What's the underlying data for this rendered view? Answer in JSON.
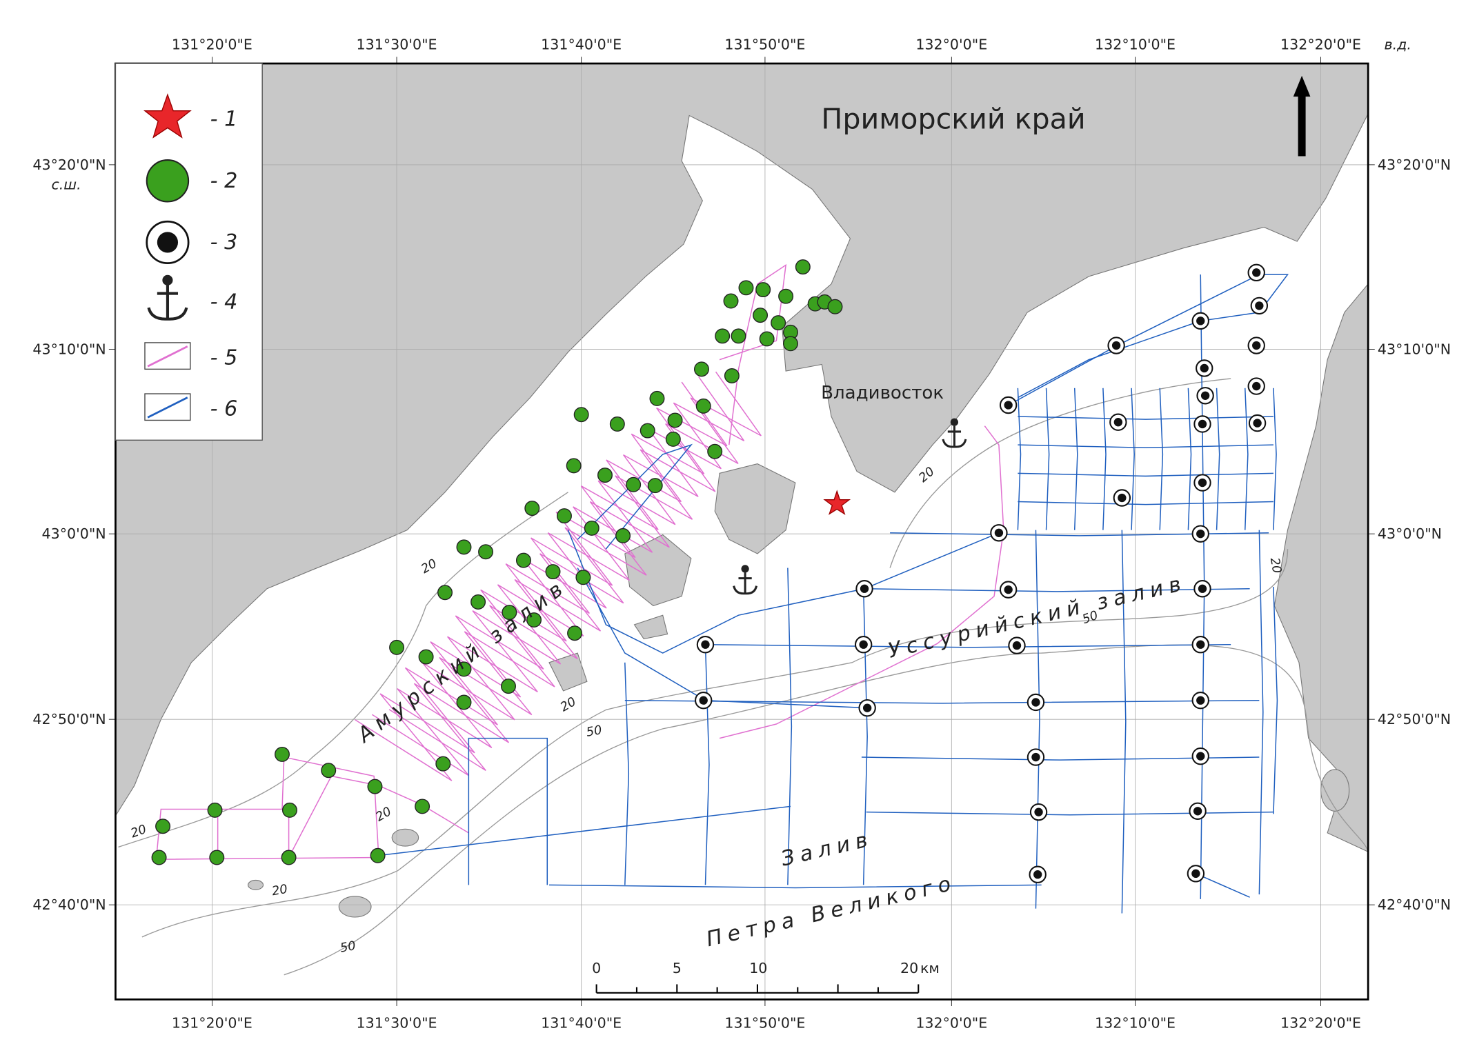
{
  "map": {
    "title": "Приморский край",
    "city": "Владивосток",
    "bays": [
      "Амурский залив",
      "Уссурийский залив",
      "Залив",
      "Петра Великого"
    ],
    "lon_labels": [
      "131°20'0\"E",
      "131°30'0\"E",
      "131°40'0\"E",
      "131°50'0\"E",
      "132°0'0\"E",
      "132°10'0\"E",
      "132°20'0\"E"
    ],
    "lat_labels": [
      "43°20'0\"N",
      "43°10'0\"N",
      "43°0'0\"N",
      "42°50'0\"N",
      "42°40'0\"N"
    ],
    "lon_unit": "в.д.",
    "lat_unit": "с.ш.",
    "legend": [
      "- 1",
      "- 2",
      "- 3",
      "- 4",
      "- 5",
      "- 6"
    ],
    "contour_labels": [
      "20",
      "20",
      "20",
      "20",
      "20",
      "20",
      "50",
      "50",
      "50"
    ],
    "scale_bar": [
      "0",
      "5",
      "10",
      "20",
      "км"
    ]
  }
}
